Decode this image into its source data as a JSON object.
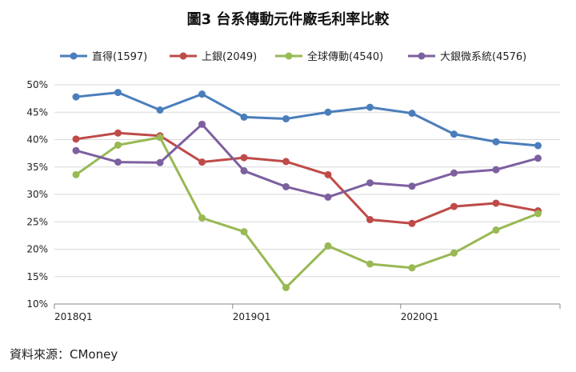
{
  "title": "圖3 台系傳動元件廠毛利率比較",
  "source": "資料來源：CMoney",
  "chart_data": {
    "type": "line",
    "title": "圖3 台系傳動元件廠毛利率比較",
    "x": [
      "2018Q1",
      "2018Q2",
      "2018Q3",
      "2018Q4",
      "2019Q1",
      "2019Q2",
      "2019Q3",
      "2019Q4",
      "2020Q1",
      "2020Q2",
      "2020Q3",
      "2020Q4"
    ],
    "x_tick_labels": [
      "2018Q1",
      "2019Q1",
      "2020Q1"
    ],
    "xlabel": "",
    "ylabel": "",
    "ylim": [
      10,
      50
    ],
    "y_ticks": [
      10,
      15,
      20,
      25,
      30,
      35,
      40,
      45,
      50
    ],
    "y_tick_suffix": "%",
    "grid": true,
    "legend_position": "top",
    "series": [
      {
        "name": "直得(1597)",
        "color": "#4a7ebb",
        "values": [
          47.8,
          48.6,
          45.4,
          48.3,
          44.1,
          43.8,
          45.0,
          45.9,
          44.8,
          41.0,
          39.6,
          38.9
        ]
      },
      {
        "name": "上銀(2049)",
        "color": "#be4b48",
        "values": [
          40.1,
          41.2,
          40.7,
          35.9,
          36.7,
          36.0,
          33.6,
          25.4,
          24.7,
          27.8,
          28.4,
          27.0
        ]
      },
      {
        "name": "全球傳動(4540)",
        "color": "#98b954",
        "values": [
          33.6,
          39.0,
          40.4,
          25.7,
          23.2,
          13.0,
          20.6,
          17.3,
          16.6,
          19.3,
          23.5,
          26.5
        ]
      },
      {
        "name": "大銀微系統(4576)",
        "color": "#7d60a0",
        "values": [
          38.0,
          35.9,
          35.8,
          42.8,
          34.3,
          31.4,
          29.5,
          32.1,
          31.5,
          33.9,
          34.5,
          36.6
        ]
      }
    ]
  }
}
